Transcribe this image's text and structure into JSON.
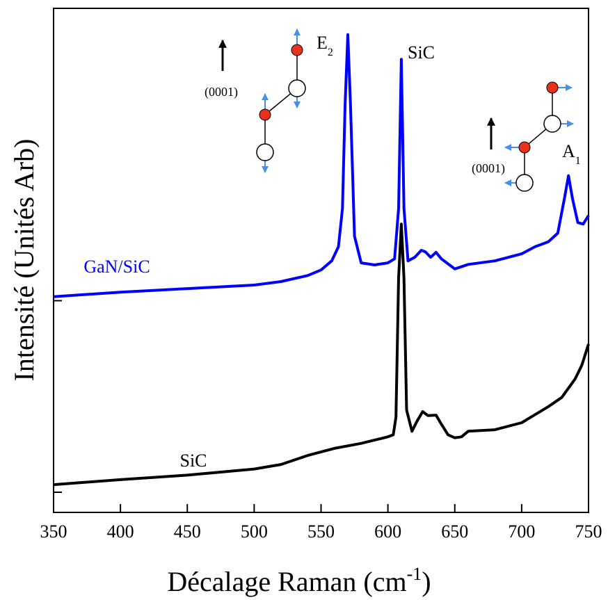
{
  "chart_data": {
    "type": "line",
    "x_label": {
      "text": "Décalage Raman (cm",
      "sup": "-1",
      "close": ")"
    },
    "y_label": "Intensité (Unités Arb)",
    "xlim": [
      350,
      750
    ],
    "xticks": [
      350,
      400,
      450,
      500,
      550,
      600,
      650,
      700,
      750
    ],
    "ylim": [
      0,
      100
    ],
    "yticks": [
      4,
      42
    ],
    "series": [
      {
        "name": "GaN/SiC",
        "color": "#0000ff",
        "x": [
          350,
          400,
          450,
          500,
          520,
          540,
          550,
          558,
          563,
          566,
          568,
          570,
          572,
          575,
          580,
          590,
          600,
          605,
          608,
          610,
          612,
          615,
          620,
          625,
          628,
          632,
          636,
          640,
          650,
          660,
          680,
          700,
          710,
          720,
          727,
          732,
          735,
          738,
          742,
          746,
          750
        ],
        "values": [
          42.8,
          43.7,
          44.4,
          45.1,
          45.8,
          47.0,
          48.1,
          49.9,
          52.7,
          60.3,
          81.0,
          94.8,
          81.0,
          54.8,
          49.5,
          49.1,
          49.5,
          50.3,
          60.3,
          89.9,
          60.3,
          49.9,
          50.6,
          52.0,
          51.7,
          50.6,
          51.6,
          50.3,
          48.3,
          49.2,
          49.9,
          51.3,
          52.7,
          53.7,
          55.4,
          62.3,
          66.8,
          62.3,
          57.5,
          57.2,
          58.9
        ]
      },
      {
        "name": "SiC",
        "color": "#000000",
        "x": [
          350,
          400,
          450,
          500,
          520,
          540,
          560,
          580,
          600,
          604,
          606,
          608,
          610,
          612,
          614,
          618,
          622,
          626,
          630,
          636,
          640,
          645,
          650,
          655,
          660,
          680,
          700,
          720,
          730,
          740,
          745,
          750
        ],
        "values": [
          5.5,
          6.5,
          7.4,
          8.6,
          9.5,
          11.3,
          12.7,
          13.7,
          15.0,
          15.4,
          18.9,
          46.5,
          57.2,
          46.5,
          20.3,
          16.1,
          18.2,
          20.0,
          19.2,
          19.3,
          17.5,
          15.4,
          14.8,
          15.0,
          16.1,
          16.4,
          17.8,
          21.0,
          22.8,
          26.5,
          29.2,
          33.4
        ]
      }
    ],
    "annotations": [
      {
        "text": "E",
        "sub": "2"
      },
      {
        "text": "SiC"
      },
      {
        "text": "A",
        "sub": "1"
      },
      {
        "text": "(0001)"
      },
      {
        "text": "(0001)"
      }
    ]
  }
}
